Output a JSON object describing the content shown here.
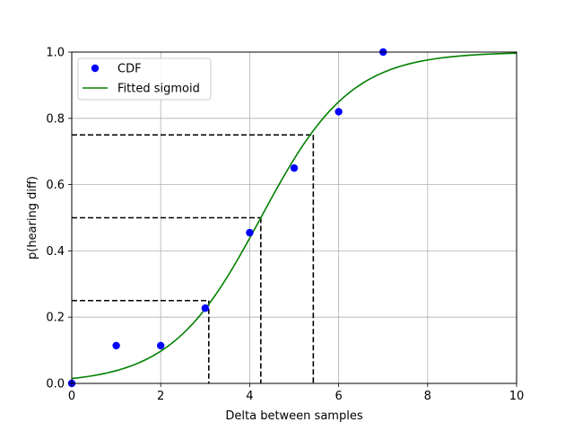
{
  "chart_data": {
    "type": "scatter",
    "xlabel": "Delta between samples",
    "ylabel": "p(hearing diff)",
    "xlim": [
      0,
      10
    ],
    "ylim": [
      0,
      1
    ],
    "xticks": [
      0,
      2,
      4,
      6,
      8,
      10
    ],
    "xtick_labels": [
      "0",
      "2",
      "4",
      "6",
      "8",
      "10"
    ],
    "yticks": [
      0,
      0.2,
      0.4,
      0.6,
      0.8,
      1.0
    ],
    "ytick_labels": [
      "0.0",
      "0.2",
      "0.4",
      "0.6",
      "0.8",
      "1.0"
    ],
    "grid": true,
    "legend_position": "upper-left",
    "series": [
      {
        "name": "CDF",
        "kind": "points",
        "color": "#0000ff",
        "x": [
          0,
          1,
          2,
          3,
          4,
          5,
          6,
          7
        ],
        "y": [
          0.0,
          0.114,
          0.114,
          0.227,
          0.455,
          0.65,
          0.82,
          1.0
        ]
      },
      {
        "name": "Fitted sigmoid",
        "kind": "line",
        "color": "#008000",
        "model": "logistic",
        "x0": 4.25,
        "k": 0.99
      }
    ],
    "reference_lines": [
      {
        "probability": 0.25,
        "x": 3.08
      },
      {
        "probability": 0.5,
        "x": 4.25
      },
      {
        "probability": 0.75,
        "x": 5.43
      }
    ],
    "reference_line_color": "#000000"
  }
}
